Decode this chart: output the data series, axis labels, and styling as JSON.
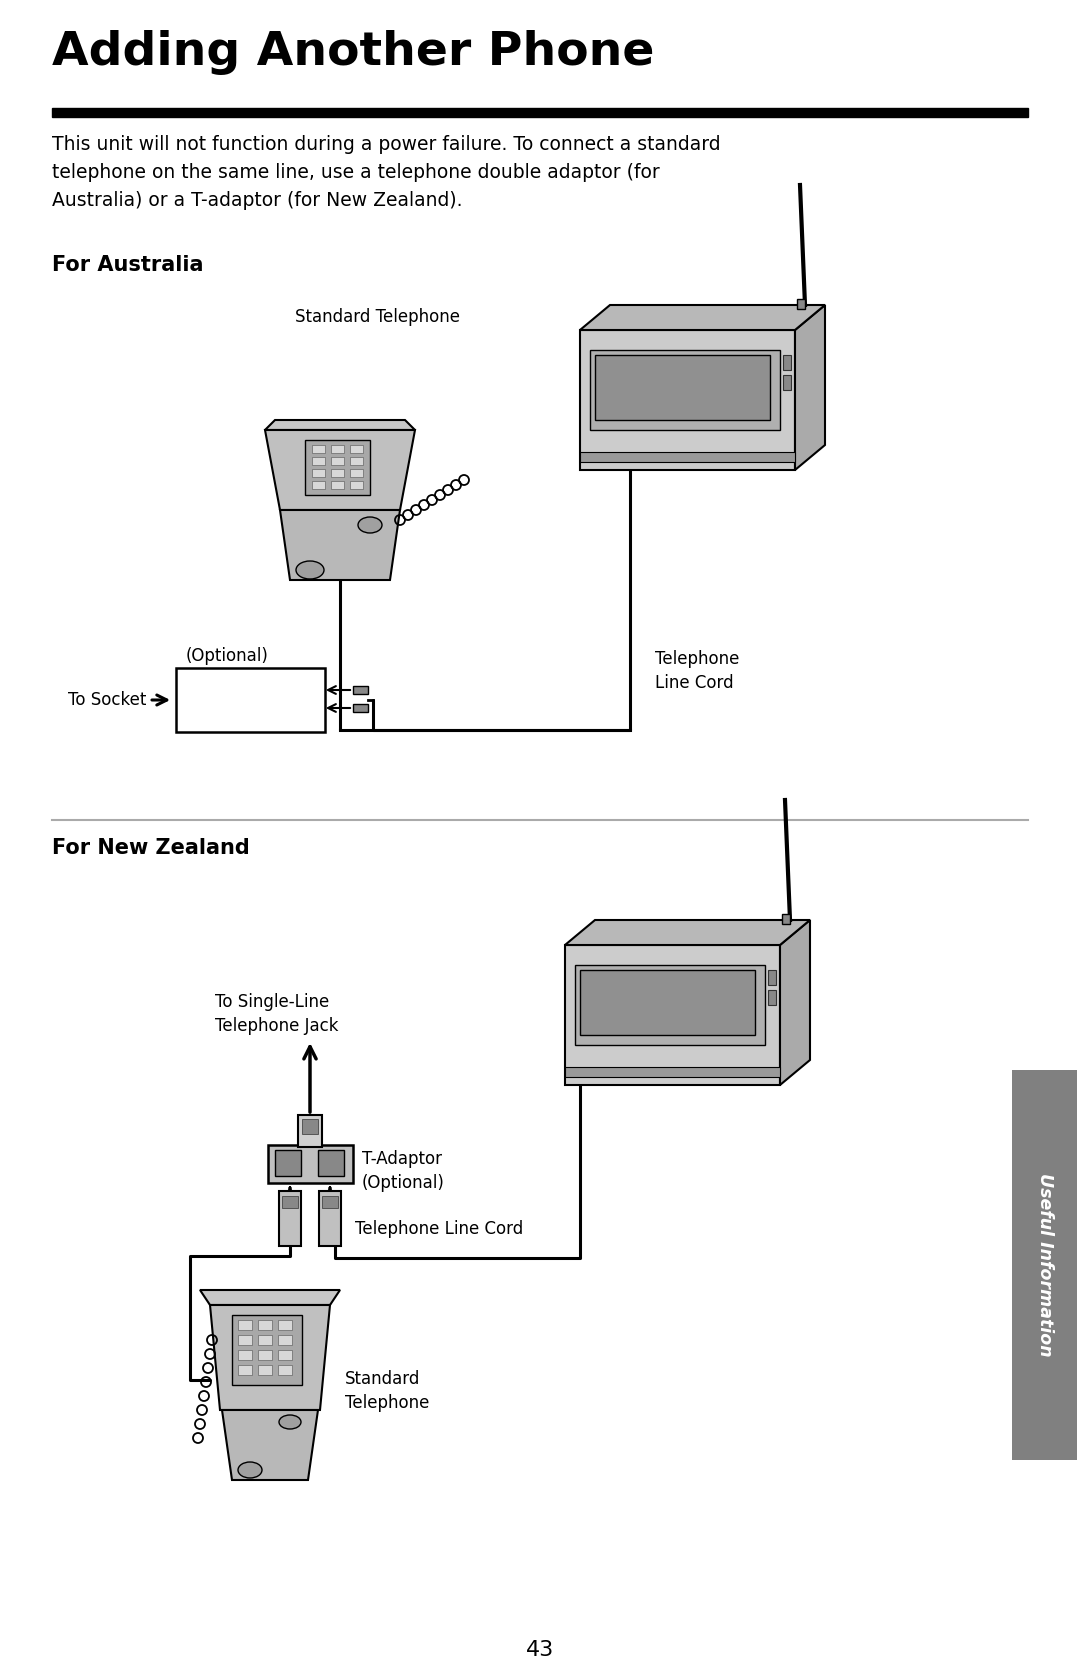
{
  "title": "Adding Another Phone",
  "title_fontsize": 34,
  "title_fontweight": "bold",
  "body_text": "This unit will not function during a power failure. To connect a standard\ntelephone on the same line, use a telephone double adaptor (for\nAustralia) or a T-adaptor (for New Zealand).",
  "body_fontsize": 13.5,
  "section1_title": "For Australia",
  "section2_title": "For New Zealand",
  "section_fontsize": 15,
  "section_fontweight": "bold",
  "bg_color": "#ffffff",
  "text_color": "#000000",
  "page_number": "43",
  "sidebar_text": "Useful Information",
  "sidebar_bg": "#808080",
  "sidebar_text_color": "#ffffff",
  "line_color": "#000000",
  "div_color": "#aaaaaa"
}
